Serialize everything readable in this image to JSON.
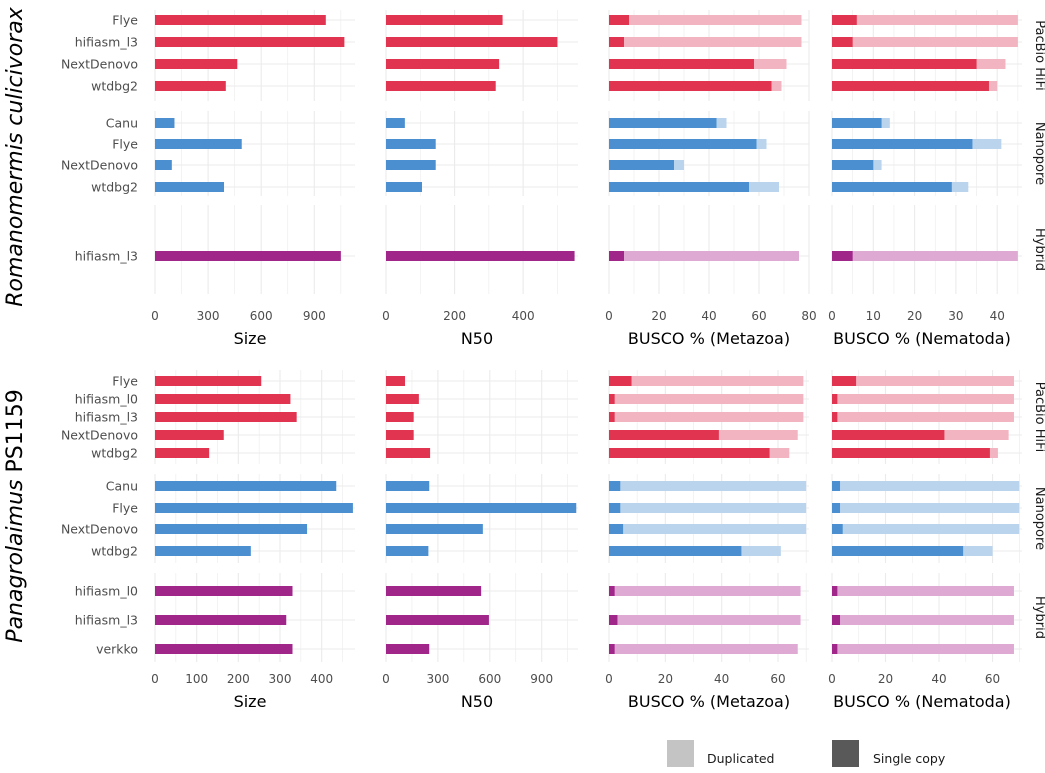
{
  "chart_data": [
    {
      "species": "Romanomermis culicivorax",
      "groups": [
        {
          "platform": "PacBio HiFi",
          "key": "pacbio",
          "assemblers": [
            "Flye",
            "hifiasm_l3",
            "NextDenovo",
            "wtdbg2"
          ],
          "size": [
            965,
            1070,
            465,
            400
          ],
          "n50": [
            340,
            500,
            330,
            320
          ],
          "metazoa_single": [
            8,
            6,
            58,
            65
          ],
          "metazoa_total": [
            77,
            77,
            71,
            69
          ],
          "nematoda_single": [
            6,
            5,
            35,
            38
          ],
          "nematoda_total": [
            45,
            45,
            42,
            40
          ]
        },
        {
          "platform": "Nanopore",
          "key": "nanopore",
          "assemblers": [
            "Canu",
            "Flye",
            "NextDenovo",
            "wtdbg2"
          ],
          "size": [
            110,
            490,
            95,
            390
          ],
          "n50": [
            55,
            145,
            145,
            105
          ],
          "metazoa_single": [
            43,
            59,
            26,
            56
          ],
          "metazoa_total": [
            47,
            63,
            30,
            68
          ],
          "nematoda_single": [
            12,
            34,
            10,
            29
          ],
          "nematoda_total": [
            14,
            41,
            12,
            33
          ]
        },
        {
          "platform": "Hybrid",
          "key": "hybrid",
          "assemblers": [
            "hifiasm_l3"
          ],
          "size": [
            1050
          ],
          "n50": [
            550
          ],
          "metazoa_single": [
            6
          ],
          "metazoa_total": [
            76
          ],
          "nematoda_single": [
            5
          ],
          "nematoda_total": [
            45
          ]
        }
      ],
      "axes": {
        "size": {
          "ticks": [
            0,
            300,
            600,
            900
          ],
          "max": 1130,
          "label": "Size"
        },
        "n50": {
          "ticks": [
            0,
            200,
            400
          ],
          "max": 560,
          "label": "N50"
        },
        "metazoa": {
          "ticks": [
            0,
            20,
            40,
            60,
            80
          ],
          "max": 80,
          "label": "BUSCO % (Metazoa)"
        },
        "nematoda": {
          "ticks": [
            0,
            10,
            20,
            30,
            40
          ],
          "max": 46,
          "label": "BUSCO % (Nematoda)"
        }
      }
    },
    {
      "species": "Panagrolaimus PS1159",
      "groups": [
        {
          "platform": "PacBio HiFi",
          "key": "pacbio",
          "assemblers": [
            "Flye",
            "hifiasm_l0",
            "hifiasm_l3",
            "NextDenovo",
            "wtdbg2"
          ],
          "size": [
            255,
            325,
            340,
            165,
            130
          ],
          "n50": [
            110,
            190,
            160,
            160,
            255
          ],
          "metazoa_single": [
            8,
            2,
            2,
            39,
            57
          ],
          "metazoa_total": [
            69,
            69,
            69,
            67,
            64
          ],
          "nematoda_single": [
            9,
            2,
            2,
            42,
            59
          ],
          "nematoda_total": [
            68,
            68,
            68,
            66,
            62
          ]
        },
        {
          "platform": "Nanopore",
          "key": "nanopore",
          "assemblers": [
            "Canu",
            "Flye",
            "NextDenovo",
            "wtdbg2"
          ],
          "size": [
            435,
            475,
            365,
            230
          ],
          "n50": [
            250,
            1100,
            560,
            245
          ],
          "metazoa_single": [
            4,
            4,
            5,
            47
          ],
          "metazoa_total": [
            70,
            70,
            70,
            61
          ],
          "nematoda_single": [
            3,
            3,
            4,
            49
          ],
          "nematoda_total": [
            70,
            70,
            70,
            60
          ]
        },
        {
          "platform": "Hybrid",
          "key": "hybrid",
          "assemblers": [
            "hifiasm_l0",
            "hifiasm_l3",
            "verkko"
          ],
          "size": [
            330,
            315,
            330
          ],
          "n50": [
            550,
            595,
            250
          ],
          "metazoa_single": [
            2,
            3,
            2
          ],
          "metazoa_total": [
            68,
            68,
            67
          ],
          "nematoda_single": [
            2,
            3,
            2
          ],
          "nematoda_total": [
            68,
            68,
            68
          ]
        }
      ],
      "axes": {
        "size": {
          "ticks": [
            0,
            100,
            200,
            300,
            400
          ],
          "max": 480,
          "label": "Size"
        },
        "n50": {
          "ticks": [
            0,
            300,
            600,
            900
          ],
          "max": 1110,
          "label": "N50"
        },
        "metazoa": {
          "ticks": [
            0,
            20,
            40,
            60
          ],
          "max": 71,
          "label": "BUSCO % (Metazoa)"
        },
        "nematoda": {
          "ticks": [
            0,
            20,
            40,
            60
          ],
          "max": 71,
          "label": "BUSCO % (Nematoda)"
        }
      }
    }
  ],
  "strips": {
    "pacbio": "PacBio HiFi",
    "nanopore": "Nanopore",
    "hybrid": "Hybrid"
  },
  "legend": {
    "duplicated": "Duplicated",
    "single_copy": "Single copy"
  },
  "colors": {
    "pacbio": "#e03450",
    "pacbio_light": "#f2b4c0",
    "nanopore": "#4b8fd0",
    "nanopore_light": "#b9d4ec",
    "hybrid": "#a0268a",
    "hybrid_light": "#deaad4",
    "legend_dup": "#c4c4c4",
    "legend_single": "#595959",
    "grid": "#ebebeb"
  }
}
